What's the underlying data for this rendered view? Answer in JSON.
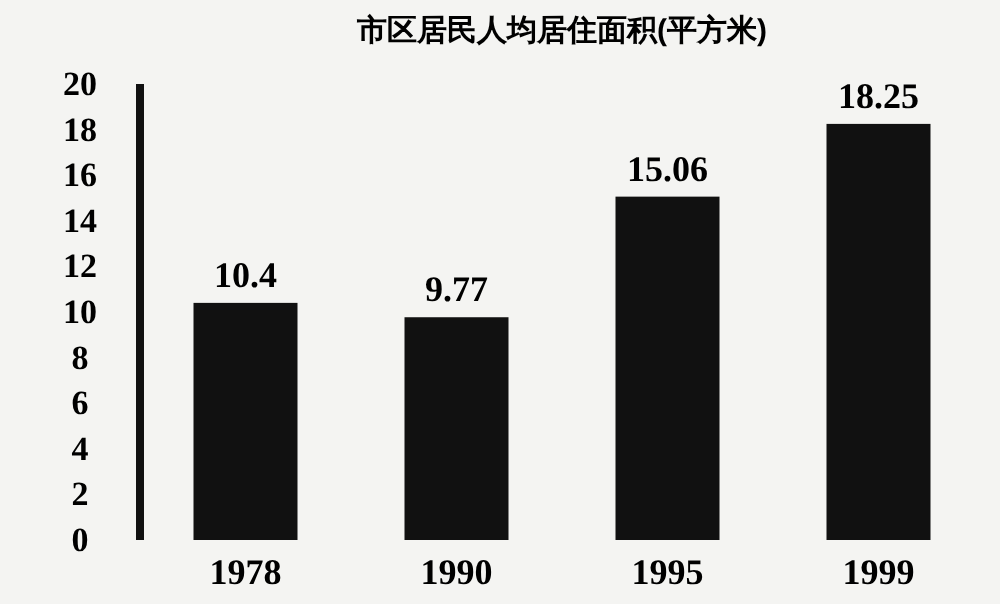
{
  "chart_data": {
    "type": "bar",
    "title": "市区居民人均居住面积(平方米)",
    "categories": [
      "1978",
      "1990",
      "1995",
      "1999"
    ],
    "values": [
      10.4,
      9.77,
      15.06,
      18.25
    ],
    "color": "#111111",
    "ylim": [
      0,
      20
    ],
    "yticks": [
      0,
      2,
      4,
      6,
      8,
      10,
      12,
      14,
      16,
      18,
      20
    ],
    "data_labels": true,
    "grid": false
  }
}
